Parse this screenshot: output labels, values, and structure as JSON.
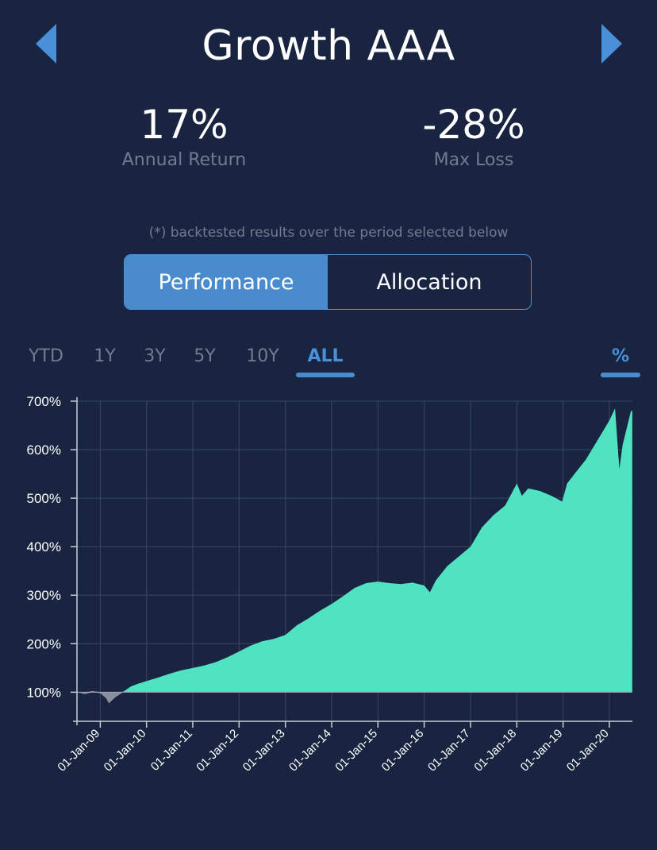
{
  "header": {
    "title": "Growth AAA"
  },
  "stats": {
    "annual_return": {
      "value": "17%",
      "label": "Annual Return"
    },
    "max_loss": {
      "value": "-28%",
      "label": "Max Loss"
    }
  },
  "note": "(*) backtested results over the period selected below",
  "tabs": [
    {
      "label": "Performance",
      "active": true
    },
    {
      "label": "Allocation",
      "active": false
    }
  ],
  "ranges": [
    "YTD",
    "1Y",
    "3Y",
    "5Y",
    "10Y",
    "ALL"
  ],
  "selected_range": "ALL",
  "unit_toggle": "%",
  "colors": {
    "background": "#182440",
    "accent": "#4a90d9",
    "area_fill": "#4fe3c1",
    "negative_fill": "#8a8f9e",
    "gridline": "#3a4762"
  },
  "chart_data": {
    "type": "area",
    "ylim": [
      40,
      700
    ],
    "ytick_labels": [
      "100%",
      "200%",
      "300%",
      "400%",
      "500%",
      "600%",
      "700%"
    ],
    "yticks": [
      100,
      200,
      300,
      400,
      500,
      600,
      700
    ],
    "x_start": "2008-07-01",
    "x_end": "2020-07-01",
    "xtick_labels": [
      "01-Jan-09",
      "01-Jan-10",
      "01-Jan-11",
      "01-Jan-12",
      "01-Jan-13",
      "01-Jan-14",
      "01-Jan-15",
      "01-Jan-16",
      "01-Jan-17",
      "01-Jan-18",
      "01-Jan-19",
      "01-Jan-20"
    ],
    "xticks": [
      "2009-01-01",
      "2010-01-01",
      "2011-01-01",
      "2012-01-01",
      "2013-01-01",
      "2014-01-01",
      "2015-01-01",
      "2016-01-01",
      "2017-01-01",
      "2018-01-01",
      "2019-01-01",
      "2020-01-01"
    ],
    "baseline": 100,
    "series": [
      {
        "x": [
          "2008-07-01",
          "2008-09-01",
          "2008-11-01",
          "2009-01-01",
          "2009-02-15",
          "2009-03-10",
          "2009-05-01",
          "2009-07-01",
          "2009-09-01",
          "2009-11-01",
          "2010-01-01",
          "2010-04-01",
          "2010-07-01",
          "2010-10-01",
          "2011-01-01",
          "2011-04-01",
          "2011-07-01",
          "2011-10-01",
          "2012-01-01",
          "2012-04-01",
          "2012-07-01",
          "2012-10-01",
          "2013-01-01",
          "2013-04-01",
          "2013-07-01",
          "2013-10-01",
          "2014-01-01",
          "2014-04-01",
          "2014-07-01",
          "2014-10-01",
          "2015-01-01",
          "2015-04-01",
          "2015-07-01",
          "2015-10-01",
          "2016-01-01",
          "2016-02-15",
          "2016-04-01",
          "2016-07-01",
          "2016-10-01",
          "2017-01-01",
          "2017-04-01",
          "2017-07-01",
          "2017-10-01",
          "2018-01-01",
          "2018-02-10",
          "2018-04-01",
          "2018-07-01",
          "2018-10-01",
          "2018-12-25",
          "2019-02-01",
          "2019-04-01",
          "2019-07-01",
          "2019-10-01",
          "2020-01-01",
          "2020-02-15",
          "2020-03-20",
          "2020-04-15",
          "2020-06-01",
          "2020-06-20",
          "2020-06-30"
        ],
        "values": [
          100,
          96,
          102,
          98,
          88,
          77,
          90,
          101,
          112,
          118,
          123,
          130,
          138,
          145,
          150,
          155,
          162,
          172,
          184,
          196,
          205,
          210,
          218,
          238,
          252,
          268,
          282,
          298,
          315,
          325,
          328,
          325,
          323,
          326,
          320,
          306,
          330,
          360,
          380,
          400,
          440,
          465,
          485,
          530,
          505,
          520,
          515,
          505,
          493,
          530,
          550,
          580,
          620,
          660,
          685,
          560,
          610,
          660,
          680,
          680
        ]
      }
    ]
  }
}
